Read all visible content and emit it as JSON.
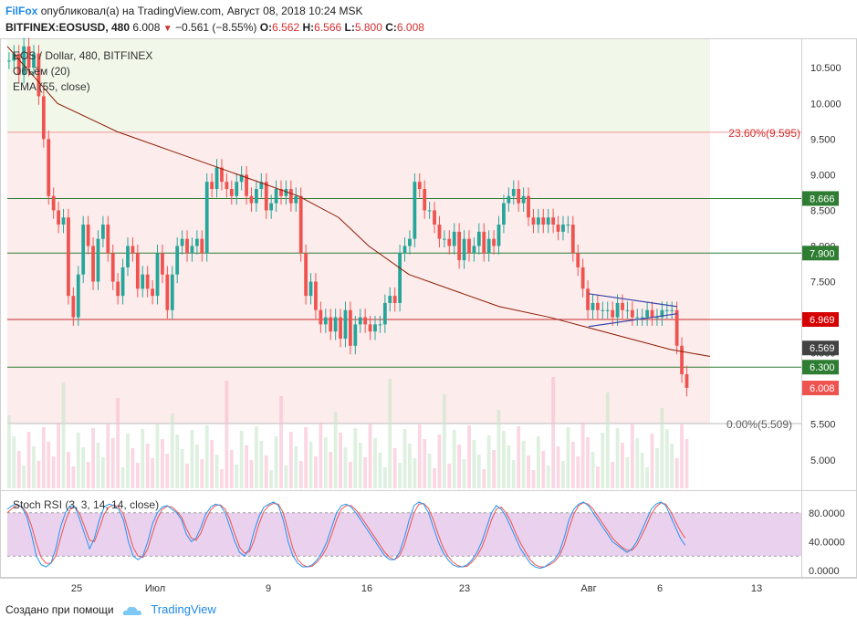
{
  "header": {
    "publisher": "FilFox",
    "published_text": "опубликовал(а) на TradingView.com, Август 08, 2018 10:24 MSK",
    "symbol": "BITFINEX:EOSUSD, 480",
    "last": "6.008",
    "change": "−0.561 (−8.55%)",
    "o_label": "O:",
    "o_val": "6.562",
    "h_label": "H:",
    "h_val": "6.566",
    "l_label": "L:",
    "l_val": "5.800",
    "c_label": "C:",
    "c_val": "6.008"
  },
  "legend": {
    "title": "EOS / Dollar, 480, BITFINEX",
    "volume": "Объём (20)",
    "ema": "EMA (55, close)"
  },
  "fib_labels": {
    "top": "23.60%(9.595)",
    "bottom": "0.00%(5.509)"
  },
  "price_badges": [
    {
      "text": "8.666",
      "value": 8.666,
      "color": "#2e7d32"
    },
    {
      "text": "7.900",
      "value": 7.9,
      "color": "#2e7d32"
    },
    {
      "text": "6.969",
      "value": 6.969,
      "color": "#d50000"
    },
    {
      "text": "6.569",
      "value": 6.569,
      "color": "#424242"
    },
    {
      "text": "6.300",
      "value": 6.3,
      "color": "#2e7d32"
    },
    {
      "text": "6.008",
      "value": 6.008,
      "color": "#ef5350"
    }
  ],
  "price_axis": [
    "10.500",
    "10.000",
    "9.500",
    "9.000",
    "8.500",
    "8.000",
    "7.500",
    "7.000",
    "6.500",
    "6.000",
    "5.500",
    "5.000"
  ],
  "stoch": {
    "title": "Stoch RSI (3, 3, 14, 14, close)",
    "axis": [
      "80.0000",
      "40.0000",
      "0.0000"
    ]
  },
  "time_axis": [
    "25",
    "Июл",
    "9",
    "16",
    "23",
    "Авг",
    "6",
    "13"
  ],
  "footer": {
    "created": "Создано при помощи",
    "brand": "TradingView"
  },
  "colors": {
    "up": "#26a69a",
    "down": "#ef5350",
    "ema": "#8b1a00",
    "stoch_k": "#2196f3",
    "stoch_d": "#ef5350",
    "band": "#e1bee7"
  },
  "chart_data": {
    "type": "candlestick",
    "title": "EOS / Dollar, 480, BITFINEX",
    "ylim": [
      4.6,
      10.9
    ],
    "horizontal_levels": [
      {
        "value": 8.666,
        "color": "#2e7d32"
      },
      {
        "value": 7.9,
        "color": "#2e7d32"
      },
      {
        "value": 6.969,
        "color": "#c62828"
      },
      {
        "value": 6.3,
        "color": "#2e7d32"
      }
    ],
    "fib_levels": [
      {
        "label": "23.60%",
        "value": 9.595
      },
      {
        "label": "0.00%",
        "value": 5.509
      }
    ],
    "candles_close": [
      10.6,
      10.7,
      10.4,
      10.8,
      10.5,
      10.7,
      10.1,
      9.5,
      8.7,
      8.5,
      8.3,
      8.4,
      7.3,
      7.0,
      7.6,
      8.3,
      8.0,
      7.5,
      8.1,
      8.3,
      7.9,
      7.5,
      7.3,
      7.7,
      8.0,
      7.9,
      7.4,
      7.6,
      7.4,
      7.3,
      7.9,
      7.6,
      7.1,
      7.6,
      8.0,
      8.1,
      7.9,
      8.0,
      8.1,
      7.9,
      8.9,
      8.8,
      9.1,
      8.9,
      8.8,
      8.7,
      8.9,
      9.0,
      8.7,
      8.6,
      8.8,
      8.9,
      8.5,
      8.6,
      8.8,
      8.7,
      8.8,
      8.6,
      8.7,
      7.9,
      7.3,
      7.5,
      7.1,
      6.9,
      7.0,
      6.8,
      7.0,
      6.7,
      7.1,
      6.6,
      6.9,
      7.0,
      6.9,
      6.8,
      6.9,
      6.9,
      7.2,
      7.3,
      7.2,
      7.9,
      8.0,
      8.1,
      8.9,
      8.8,
      8.5,
      8.5,
      8.3,
      8.1,
      8.1,
      8.0,
      8.2,
      7.8,
      8.1,
      7.9,
      8.0,
      8.2,
      7.9,
      8.1,
      8.0,
      8.3,
      8.6,
      8.7,
      8.8,
      8.6,
      8.7,
      8.4,
      8.3,
      8.4,
      8.3,
      8.4,
      8.3,
      8.2,
      8.3,
      8.3,
      7.9,
      7.7,
      7.4,
      7.1,
      7.2,
      7.1,
      7.1,
      7.1,
      7.0,
      7.2,
      7.1,
      7.1,
      7.0,
      7.0,
      7.0,
      7.1,
      7.0,
      7.0,
      7.1,
      7.1,
      7.1,
      6.6,
      6.2,
      6.01
    ],
    "ema55_points": [
      [
        0,
        10.8
      ],
      [
        25,
        10.0
      ],
      [
        55,
        9.6
      ],
      [
        85,
        9.3
      ],
      [
        115,
        9.0
      ],
      [
        145,
        8.7
      ],
      [
        165,
        8.4
      ],
      [
        180,
        8.0
      ],
      [
        200,
        7.6
      ],
      [
        225,
        7.35
      ],
      [
        245,
        7.15
      ],
      [
        270,
        7.0
      ],
      [
        290,
        6.85
      ],
      [
        310,
        6.7
      ],
      [
        330,
        6.55
      ],
      [
        350,
        6.45
      ]
    ],
    "triangle": {
      "upper": [
        [
          645,
          7.33
        ],
        [
          742,
          7.15
        ]
      ],
      "lower": [
        [
          645,
          6.87
        ],
        [
          742,
          7.05
        ]
      ]
    },
    "stoch_k": [
      85,
      90,
      92,
      88,
      75,
      50,
      20,
      8,
      5,
      10,
      30,
      60,
      80,
      90,
      88,
      70,
      50,
      30,
      45,
      70,
      88,
      92,
      90,
      85,
      70,
      40,
      20,
      15,
      20,
      40,
      65,
      80,
      88,
      90,
      85,
      80,
      70,
      50,
      40,
      45,
      60,
      78,
      88,
      92,
      90,
      80,
      60,
      40,
      25,
      20,
      30,
      55,
      75,
      88,
      92,
      95,
      90,
      70,
      40,
      20,
      10,
      5,
      5,
      8,
      15,
      25,
      40,
      60,
      80,
      90,
      92,
      88,
      80,
      70,
      60,
      50,
      40,
      30,
      20,
      15,
      15,
      25,
      45,
      70,
      90,
      95,
      92,
      80,
      60,
      40,
      25,
      15,
      8,
      5,
      5,
      8,
      15,
      25,
      40,
      60,
      80,
      90,
      85,
      75,
      60,
      45,
      30,
      20,
      10,
      5,
      3,
      5,
      10,
      15,
      25,
      45,
      70,
      85,
      92,
      95,
      90,
      80,
      70,
      60,
      50,
      40,
      35,
      30,
      25,
      30,
      40,
      55,
      70,
      85,
      92,
      95,
      90,
      75,
      60,
      45,
      35
    ],
    "stoch_d": [
      80,
      86,
      90,
      89,
      80,
      62,
      38,
      18,
      10,
      10,
      20,
      45,
      68,
      85,
      88,
      78,
      60,
      42,
      40,
      58,
      78,
      88,
      91,
      88,
      78,
      55,
      32,
      20,
      18,
      30,
      52,
      72,
      85,
      89,
      88,
      82,
      74,
      58,
      45,
      42,
      52,
      70,
      84,
      90,
      91,
      85,
      70,
      50,
      32,
      24,
      26,
      42,
      65,
      82,
      90,
      93,
      92,
      80,
      55,
      30,
      15,
      8,
      5,
      6,
      12,
      20,
      32,
      50,
      70,
      85,
      90,
      90,
      84,
      75,
      65,
      55,
      45,
      35,
      25,
      18,
      15,
      20,
      35,
      58,
      80,
      92,
      93,
      86,
      70,
      50,
      32,
      20,
      12,
      7,
      5,
      6,
      12,
      20,
      32,
      50,
      70,
      85,
      88,
      80,
      68,
      52,
      38,
      26,
      15,
      8,
      5,
      5,
      8,
      12,
      20,
      35,
      58,
      78,
      90,
      94,
      92,
      85,
      75,
      65,
      55,
      45,
      38,
      32,
      28,
      28,
      35,
      48,
      62,
      78,
      88,
      94,
      92,
      82,
      68,
      55,
      45
    ]
  }
}
